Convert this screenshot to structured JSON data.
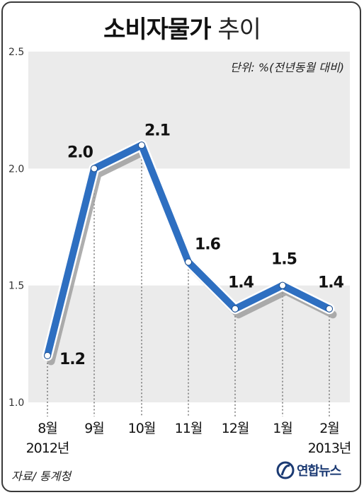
{
  "title_bold": "소비자물가",
  "title_light": "추이",
  "unit_note": "단위: %(전년동월 대비)",
  "source": "자료/ 통계청",
  "logo_text": "연합뉴스",
  "colors": {
    "line": "#2e6fc1",
    "band": "#ebebeb",
    "shadow": "#9a9a9a"
  },
  "chart_data": {
    "type": "line",
    "categories": [
      "8월",
      "9월",
      "10월",
      "11월",
      "12월",
      "1월",
      "2월"
    ],
    "year_labels": [
      {
        "index": 0,
        "text": "2012년"
      },
      {
        "index": 6,
        "text": "2013년"
      }
    ],
    "values": [
      1.2,
      2.0,
      2.1,
      1.6,
      1.4,
      1.5,
      1.4
    ],
    "labels": [
      "1.2",
      "2.0",
      "2.1",
      "1.6",
      "1.4",
      "1.5",
      "1.4"
    ],
    "yticks": [
      "2.5",
      "2.0",
      "1.5",
      "1.0"
    ],
    "ylim": [
      1.0,
      2.5
    ],
    "grid": "alternating bands"
  }
}
